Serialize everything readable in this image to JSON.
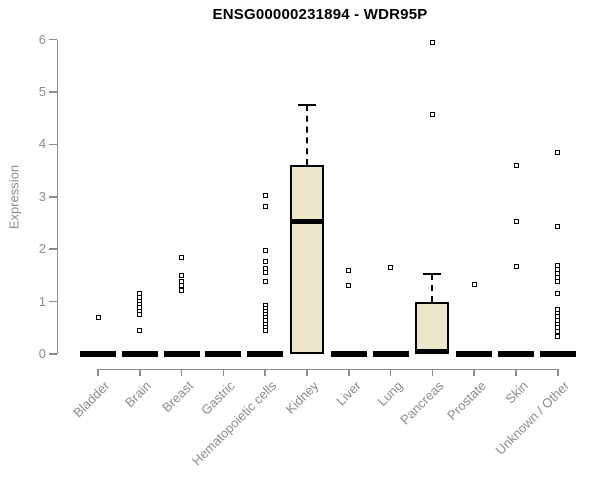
{
  "chart_data": {
    "type": "boxplot",
    "title": "ENSG00000231894 - WDR95P",
    "xlabel": "",
    "ylabel": "Expression",
    "ylim": [
      0,
      6
    ],
    "y_ticks": [
      0,
      1,
      2,
      3,
      4,
      5,
      6
    ],
    "grid": false,
    "legend": null,
    "categories": [
      "Bladder",
      "Brain",
      "Breast",
      "Gastric",
      "Hematopoietic cells",
      "Kidney",
      "Liver",
      "Lung",
      "Pancreas",
      "Prostate",
      "Skin",
      "Unknown / Other"
    ],
    "boxes": [
      {
        "q1": 0,
        "median": 0,
        "q3": 0,
        "whisker_low": 0,
        "whisker_high": 0
      },
      {
        "q1": 0,
        "median": 0,
        "q3": 0,
        "whisker_low": 0,
        "whisker_high": 0
      },
      {
        "q1": 0,
        "median": 0,
        "q3": 0,
        "whisker_low": 0,
        "whisker_high": 0
      },
      {
        "q1": 0,
        "median": 0,
        "q3": 0,
        "whisker_low": 0,
        "whisker_high": 0
      },
      {
        "q1": 0,
        "median": 0,
        "q3": 0,
        "whisker_low": 0,
        "whisker_high": 0
      },
      {
        "q1": 0,
        "median": 2.52,
        "q3": 3.6,
        "whisker_low": 0,
        "whisker_high": 4.76
      },
      {
        "q1": 0,
        "median": 0,
        "q3": 0,
        "whisker_low": 0,
        "whisker_high": 0
      },
      {
        "q1": 0,
        "median": 0,
        "q3": 0,
        "whisker_low": 0,
        "whisker_high": 0
      },
      {
        "q1": 0,
        "median": 0,
        "q3": 1.0,
        "whisker_low": 0,
        "whisker_high": 1.52
      },
      {
        "q1": 0,
        "median": 0,
        "q3": 0,
        "whisker_low": 0,
        "whisker_high": 0
      },
      {
        "q1": 0,
        "median": 0,
        "q3": 0,
        "whisker_low": 0,
        "whisker_high": 0
      },
      {
        "q1": 0,
        "median": 0,
        "q3": 0,
        "whisker_low": 0,
        "whisker_high": 0
      }
    ],
    "outliers": [
      [
        0.7
      ],
      [
        1.15,
        1.08,
        1.01,
        0.95,
        0.88,
        0.81,
        0.76,
        0.45
      ],
      [
        1.85,
        1.5,
        1.38,
        1.3,
        1.22
      ],
      [],
      [
        3.02,
        2.82,
        1.97,
        1.76,
        1.63,
        1.56,
        1.38,
        0.93,
        0.87,
        0.81,
        0.75,
        0.69,
        0.63,
        0.57,
        0.51,
        0.45
      ],
      [],
      [
        1.59,
        1.3
      ],
      [
        1.66
      ],
      [
        5.95,
        4.58
      ],
      [
        1.33
      ],
      [
        3.6,
        2.52,
        1.67
      ],
      [
        3.85,
        2.44,
        1.69,
        1.61,
        1.53,
        1.46,
        1.39,
        1.16,
        0.85,
        0.78,
        0.71,
        0.64,
        0.57,
        0.5,
        0.43,
        0.33
      ]
    ],
    "colors": {
      "box_fill": "#ECE7CB",
      "ink": "#000000",
      "axis": "#8C8C8C"
    }
  }
}
